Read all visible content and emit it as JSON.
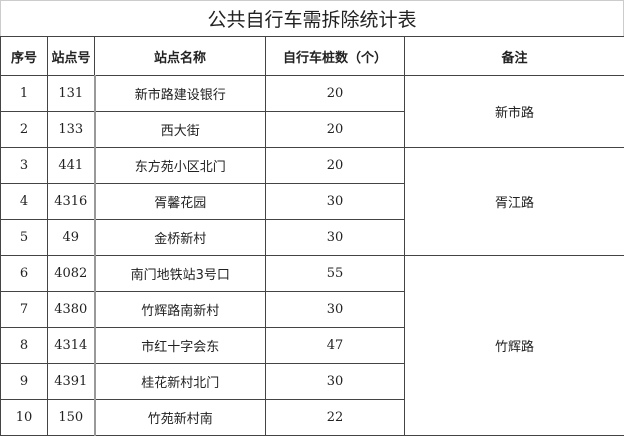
{
  "title": "公共自行车需拆除统计表",
  "headers": [
    "序号",
    "站点号",
    "站点名称",
    "自行车桩数（个）",
    "备注"
  ],
  "rows": [
    {
      "no": "1",
      "station_id": "131",
      "name": "新市路建设银行",
      "count": "20"
    },
    {
      "no": "2",
      "station_id": "133",
      "name": "西大街",
      "count": "20"
    },
    {
      "no": "3",
      "station_id": "441",
      "name": "东方苑小区北门",
      "count": "20"
    },
    {
      "no": "4",
      "station_id": "4316",
      "name": "胥馨花园",
      "count": "30"
    },
    {
      "no": "5",
      "station_id": "49",
      "name": "金桥新村",
      "count": "30"
    },
    {
      "no": "6",
      "station_id": "4082",
      "name": "南门地铁站3号口",
      "count": "55"
    },
    {
      "no": "7",
      "station_id": "4380",
      "name": "竹辉路南新村",
      "count": "30"
    },
    {
      "no": "8",
      "station_id": "4314",
      "name": "市红十字会东",
      "count": "47"
    },
    {
      "no": "9",
      "station_id": "4391",
      "name": "桂花新村北门",
      "count": "30"
    },
    {
      "no": "10",
      "station_id": "150",
      "name": "竹苑新村南",
      "count": "22"
    }
  ],
  "notes": [
    "新市路",
    "胥江路",
    "竹辉路"
  ]
}
